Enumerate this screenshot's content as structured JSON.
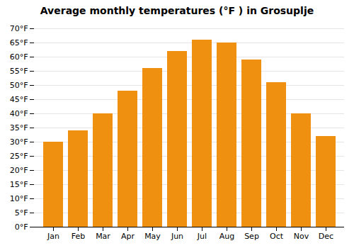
{
  "chart_data": {
    "type": "bar",
    "title": "Average monthly temperatures (°F ) in Grosuplje",
    "categories": [
      "Jan",
      "Feb",
      "Mar",
      "Apr",
      "May",
      "Jun",
      "Jul",
      "Aug",
      "Sep",
      "Oct",
      "Nov",
      "Dec"
    ],
    "values": [
      30,
      34,
      40,
      48,
      56,
      62,
      66,
      65,
      59,
      51,
      40,
      32
    ],
    "color": "#F09010",
    "ylim": [
      0,
      70
    ],
    "yticks": [
      {
        "value": 0,
        "label": "0°F"
      },
      {
        "value": 5,
        "label": "5°F"
      },
      {
        "value": 10,
        "label": "10°F"
      },
      {
        "value": 15,
        "label": "15°F"
      },
      {
        "value": 20,
        "label": "20°F"
      },
      {
        "value": 25,
        "label": "25°F"
      },
      {
        "value": 30,
        "label": "30°F"
      },
      {
        "value": 35,
        "label": "35°F"
      },
      {
        "value": 40,
        "label": "40°F"
      },
      {
        "value": 45,
        "label": "45°F"
      },
      {
        "value": 50,
        "label": "50°F"
      },
      {
        "value": 55,
        "label": "55°F"
      },
      {
        "value": 60,
        "label": "60°F"
      },
      {
        "value": 65,
        "label": "65°F"
      },
      {
        "value": 70,
        "label": "70°F"
      }
    ],
    "grid": true
  }
}
